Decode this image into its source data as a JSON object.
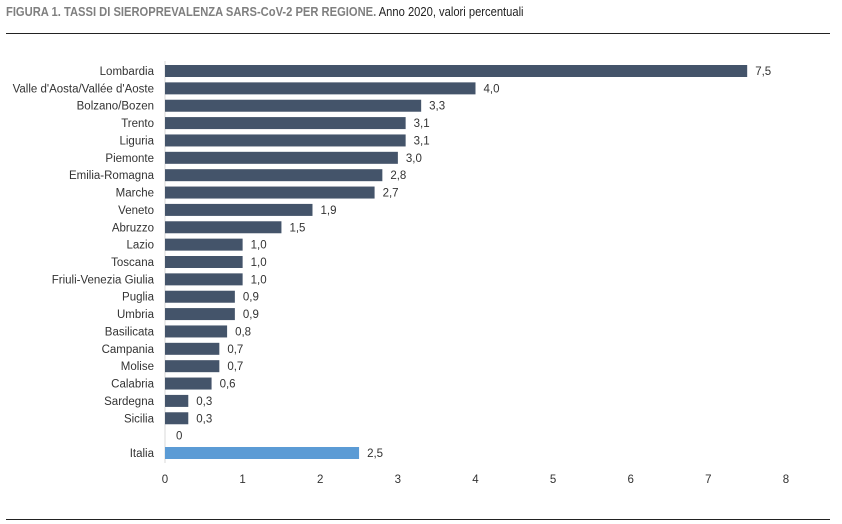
{
  "title": {
    "bold": "FIGURA  1. TASSI DI SIEROPREVALENZA SARS-CoV-2 PER REGIONE.",
    "normal": "Anno 2020, valori percentuali"
  },
  "chart_data": {
    "type": "bar",
    "orientation": "horizontal",
    "title": "FIGURA  1. TASSI DI SIEROPREVALENZA SARS-CoV-2 PER REGIONE. Anno 2020, valori percentuali",
    "categories": [
      "Lombardia",
      "Valle d'Aosta/Vallée d'Aoste",
      "Bolzano/Bozen",
      "Trento",
      "Liguria",
      "Piemonte",
      "Emilia-Romagna",
      "Marche",
      "Veneto",
      "Abruzzo",
      "Lazio",
      "Toscana",
      "Friuli-Venezia Giulia",
      "Puglia",
      "Umbria",
      "Basilicata",
      "Campania",
      "Molise",
      "Calabria",
      "Sardegna",
      "Sicilia",
      "",
      "Italia"
    ],
    "values": [
      7.5,
      4.0,
      3.3,
      3.1,
      3.1,
      3.0,
      2.8,
      2.7,
      1.9,
      1.5,
      1.0,
      1.0,
      1.0,
      0.9,
      0.9,
      0.8,
      0.7,
      0.7,
      0.6,
      0.3,
      0.3,
      0,
      2.5
    ],
    "data_labels": [
      "7,5",
      "4,0",
      "3,3",
      "3,1",
      "3,1",
      "3,0",
      "2,8",
      "2,7",
      "1,9",
      "1,5",
      "1,0",
      "1,0",
      "1,0",
      "0,9",
      "0,9",
      "0,8",
      "0,7",
      "0,7",
      "0,6",
      "0,3",
      "0,3",
      "0",
      "2,5"
    ],
    "xlim": [
      0,
      8
    ],
    "xticks": [
      "0",
      "1",
      "2",
      "3",
      "4",
      "5",
      "6",
      "7",
      "8"
    ],
    "xlabel": "",
    "ylabel": "",
    "grid": false,
    "colors": {
      "regions": "#44546a",
      "highlight": "#5b9bd5"
    },
    "highlight_category": "Italia"
  }
}
